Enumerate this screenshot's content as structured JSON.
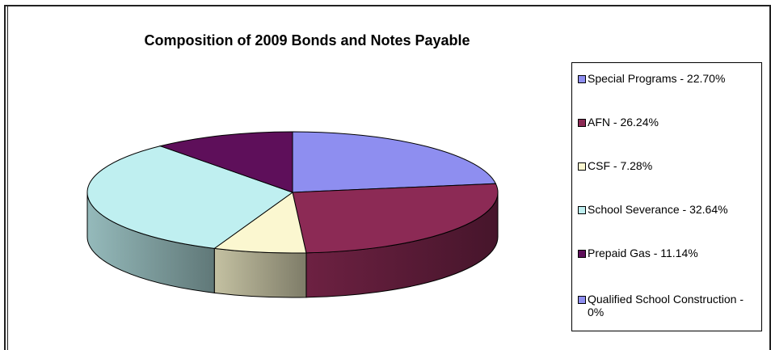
{
  "chart_data": {
    "type": "pie",
    "title": "Composition of 2009 Bonds and Notes Payable",
    "slices": [
      {
        "label": "Special Programs - 22.70%",
        "value": 22.7,
        "color": "#8e8ef0"
      },
      {
        "label": "AFN - 26.24%",
        "value": 26.24,
        "color": "#8c2a55"
      },
      {
        "label": "CSF - 7.28%",
        "value": 7.28,
        "color": "#fbf7d0"
      },
      {
        "label": "School Severance - 32.64%",
        "value": 32.64,
        "color": "#bfeff0"
      },
      {
        "label": "Prepaid Gas - 11.14%",
        "value": 11.14,
        "color": "#5e0f5a"
      },
      {
        "label": "Qualified School Construction - 0%",
        "value": 0,
        "color": "#8e8ef0"
      }
    ],
    "legend_position": "right",
    "style": "3d"
  }
}
